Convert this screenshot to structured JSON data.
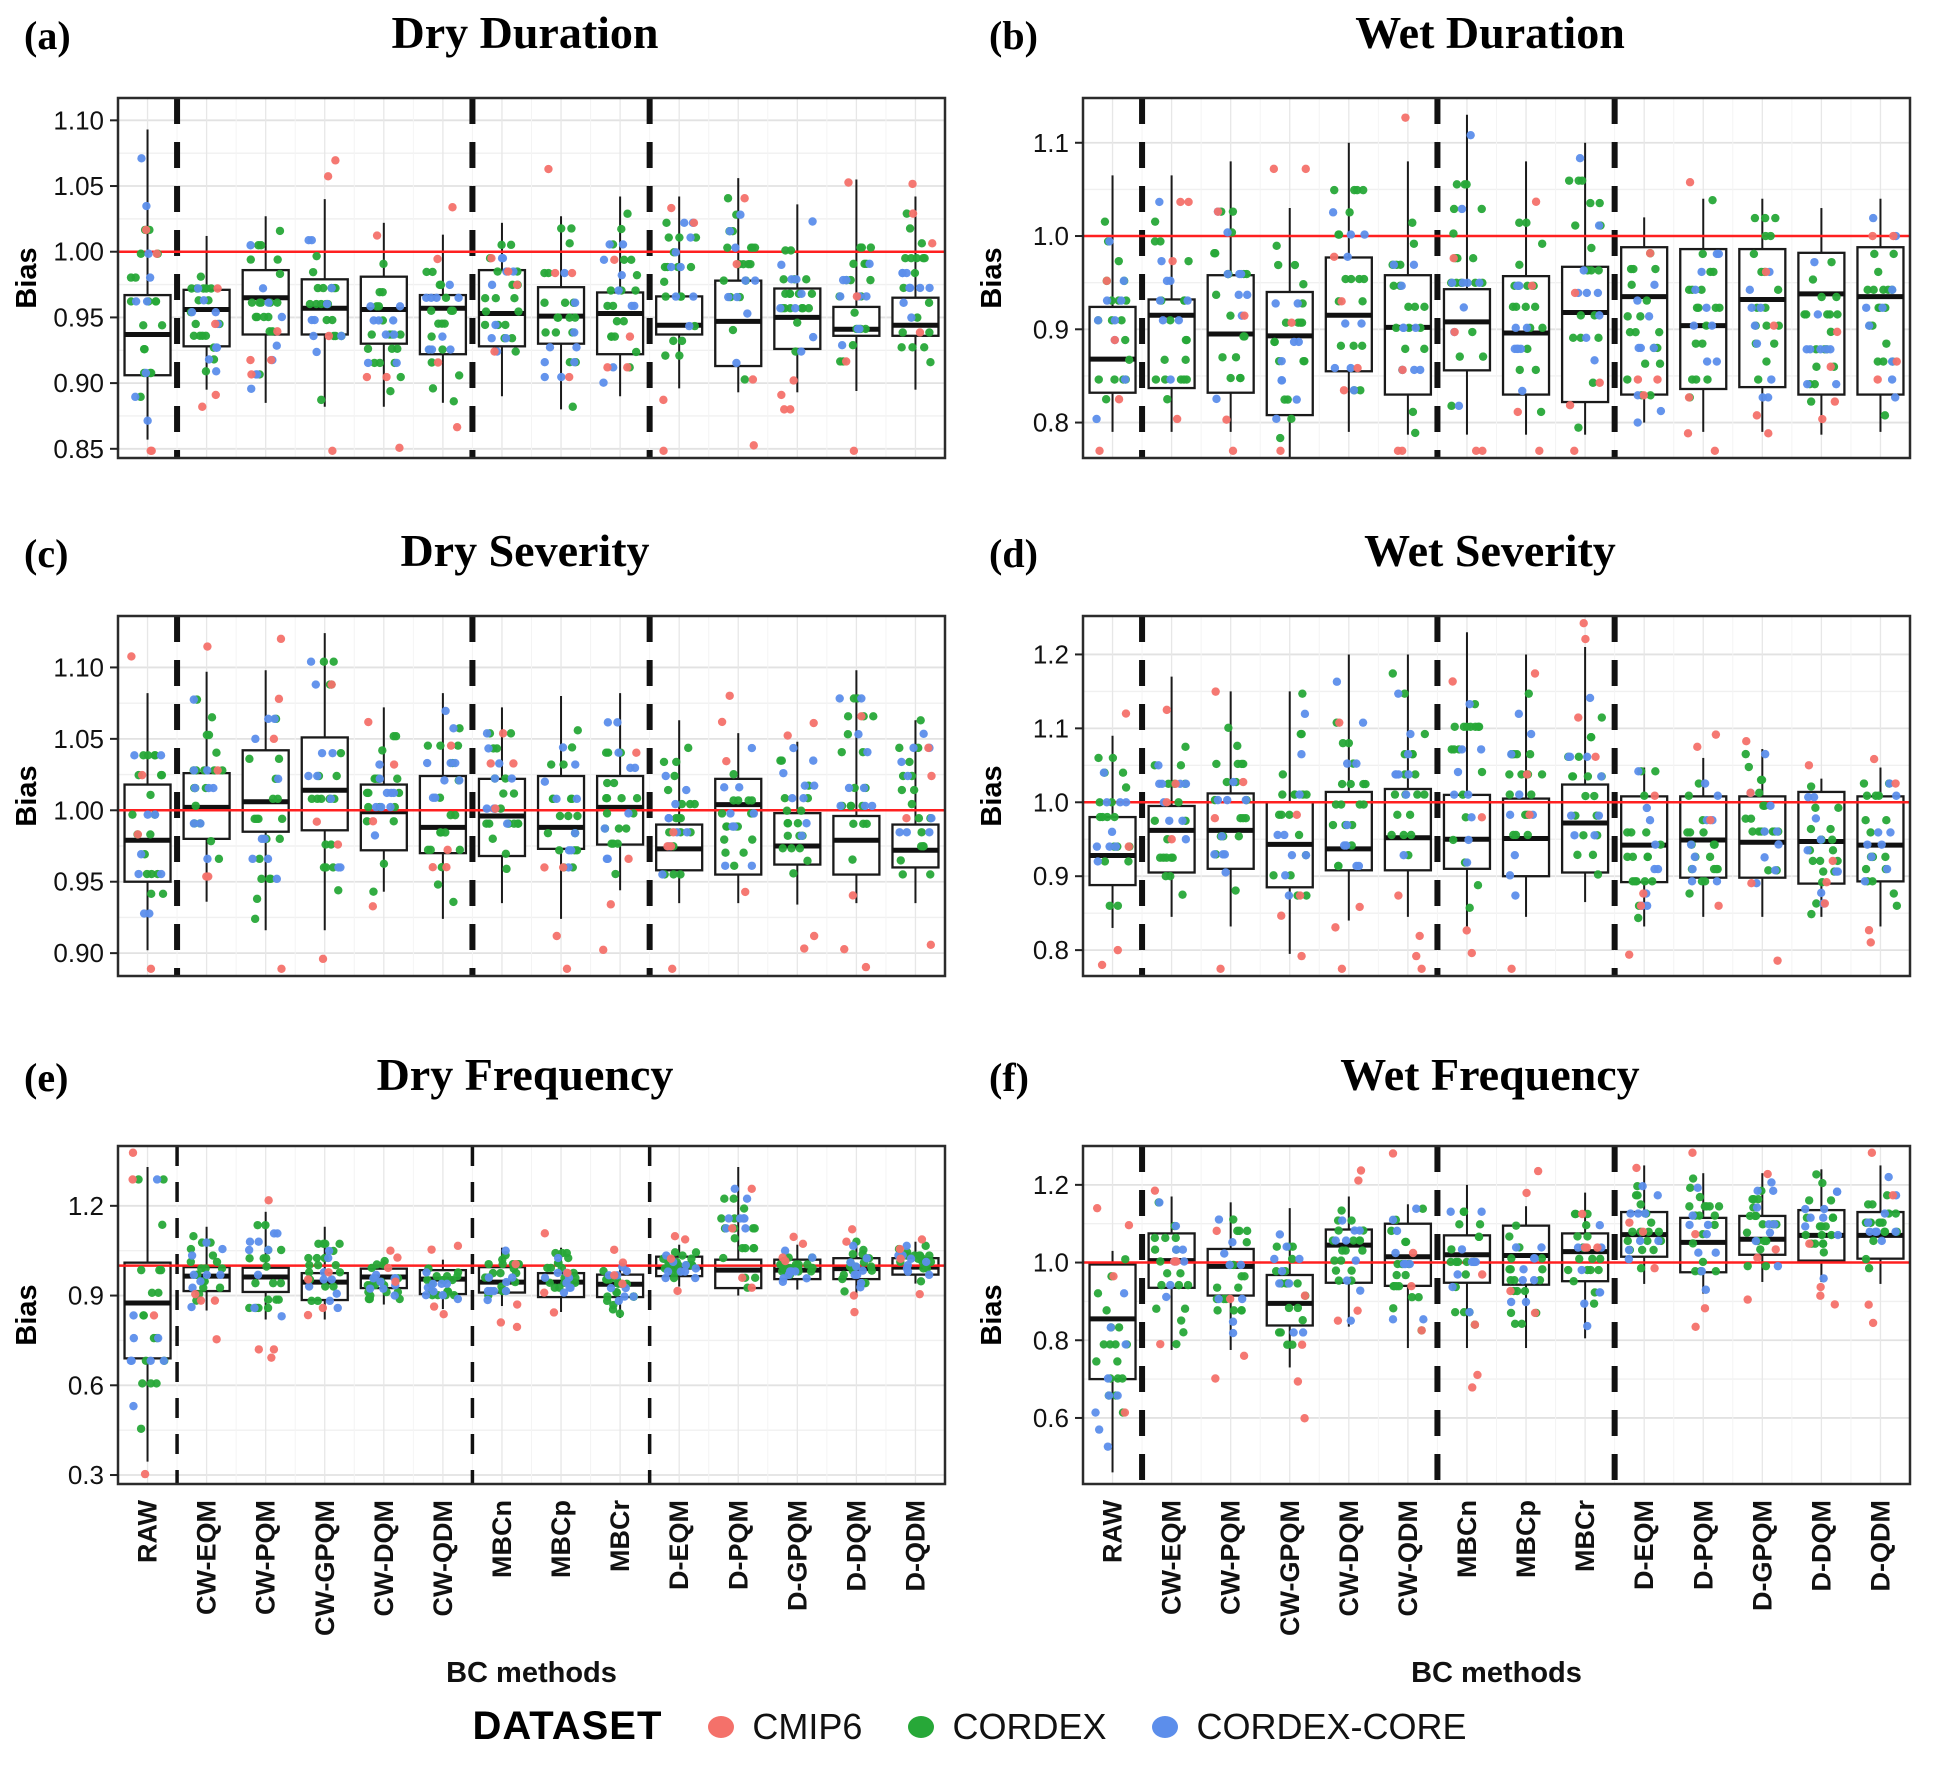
{
  "figure": {
    "background": "#ffffff"
  },
  "legend": {
    "title": "DATASET",
    "entries": [
      {
        "label": "CMIP6",
        "color": "#F4716A"
      },
      {
        "label": "CORDEX",
        "color": "#27A838"
      },
      {
        "label": "CORDEX-CORE",
        "color": "#5C8EEB"
      }
    ]
  },
  "chart_data": {
    "type": "boxplot",
    "xlabel": "BC methods",
    "ylabel": "Bias",
    "reference_line": 1.0,
    "reference_line_color": "#FF2020",
    "categories": [
      "RAW",
      "CW-EQM",
      "CW-PQM",
      "CW-GPQM",
      "CW-DQM",
      "CW-QDM",
      "MBCn",
      "MBCp",
      "MBCr",
      "D-EQM",
      "D-PQM",
      "D-GPQM",
      "D-DQM",
      "D-QDM"
    ],
    "group_separators_after": [
      "RAW",
      "CW-QDM",
      "MBCr"
    ],
    "datasets": [
      "CMIP6",
      "CORDEX",
      "CORDEX-CORE"
    ],
    "points_per_category": {
      "CMIP6": 4,
      "CORDEX": 18,
      "CORDEX-CORE": 9
    },
    "box_stats_order": [
      "whisker_low",
      "q1",
      "median",
      "q3",
      "whisker_high"
    ],
    "panels": [
      {
        "panel_label": "(a)",
        "title": "Dry Duration",
        "ylim": [
          0.843,
          1.117
        ],
        "yticks": [
          0.85,
          0.9,
          0.95,
          1.0,
          1.05,
          1.1
        ],
        "ytick_labels": [
          "0.85",
          "0.90",
          "0.95",
          "1.00",
          "1.05",
          "1.10"
        ],
        "boxes": [
          [
            0.857,
            0.906,
            0.937,
            0.967,
            1.093
          ],
          [
            0.895,
            0.928,
            0.956,
            0.971,
            1.012
          ],
          [
            0.885,
            0.937,
            0.965,
            0.986,
            1.027
          ],
          [
            0.882,
            0.937,
            0.957,
            0.979,
            1.04
          ],
          [
            0.882,
            0.93,
            0.956,
            0.981,
            1.022
          ],
          [
            0.885,
            0.922,
            0.957,
            0.967,
            1.013
          ],
          [
            0.89,
            0.928,
            0.953,
            0.986,
            1.022
          ],
          [
            0.88,
            0.93,
            0.951,
            0.973,
            1.027
          ],
          [
            0.89,
            0.922,
            0.953,
            0.969,
            1.042
          ],
          [
            0.896,
            0.937,
            0.944,
            0.966,
            1.042
          ],
          [
            0.893,
            0.913,
            0.947,
            0.978,
            1.056
          ],
          [
            0.893,
            0.926,
            0.95,
            0.972,
            1.036
          ],
          [
            0.894,
            0.936,
            0.941,
            0.958,
            1.055
          ],
          [
            0.895,
            0.936,
            0.944,
            0.965,
            1.042
          ]
        ]
      },
      {
        "panel_label": "(b)",
        "title": "Wet Duration",
        "ylim": [
          0.762,
          1.148
        ],
        "yticks": [
          0.8,
          0.9,
          1.0,
          1.1
        ],
        "ytick_labels": [
          "0.8",
          "0.9",
          "1.0",
          "1.1"
        ],
        "boxes": [
          [
            0.79,
            0.832,
            0.868,
            0.924,
            1.065
          ],
          [
            0.79,
            0.837,
            0.915,
            0.932,
            1.065
          ],
          [
            0.79,
            0.832,
            0.895,
            0.958,
            1.08
          ],
          [
            0.762,
            0.808,
            0.893,
            0.94,
            1.03
          ],
          [
            0.79,
            0.855,
            0.915,
            0.977,
            1.1
          ],
          [
            0.787,
            0.83,
            0.902,
            0.958,
            1.08
          ],
          [
            0.787,
            0.856,
            0.908,
            0.943,
            1.13
          ],
          [
            0.787,
            0.83,
            0.896,
            0.957,
            1.08
          ],
          [
            0.787,
            0.822,
            0.918,
            0.967,
            1.1
          ],
          [
            0.8,
            0.83,
            0.935,
            0.988,
            1.02
          ],
          [
            0.79,
            0.836,
            0.904,
            0.986,
            1.04
          ],
          [
            0.79,
            0.838,
            0.932,
            0.986,
            1.04
          ],
          [
            0.787,
            0.83,
            0.938,
            0.982,
            1.03
          ],
          [
            0.79,
            0.83,
            0.935,
            0.988,
            1.04
          ]
        ]
      },
      {
        "panel_label": "(c)",
        "title": "Dry Severity",
        "ylim": [
          0.884,
          1.136
        ],
        "yticks": [
          0.9,
          0.95,
          1.0,
          1.05,
          1.1
        ],
        "ytick_labels": [
          "0.90",
          "0.95",
          "1.00",
          "1.05",
          "1.10"
        ],
        "boxes": [
          [
            0.902,
            0.95,
            0.979,
            1.018,
            1.082
          ],
          [
            0.936,
            0.98,
            1.002,
            1.026,
            1.097
          ],
          [
            0.916,
            0.985,
            1.006,
            1.042,
            1.098
          ],
          [
            0.916,
            0.986,
            1.014,
            1.051,
            1.124
          ],
          [
            0.943,
            0.972,
            0.999,
            1.018,
            1.072
          ],
          [
            0.924,
            0.97,
            0.988,
            1.024,
            1.082
          ],
          [
            0.935,
            0.968,
            0.996,
            1.022,
            1.072
          ],
          [
            0.924,
            0.973,
            0.988,
            1.024,
            1.08
          ],
          [
            0.944,
            0.976,
            1.002,
            1.024,
            1.082
          ],
          [
            0.935,
            0.958,
            0.973,
            0.99,
            1.063
          ],
          [
            0.935,
            0.955,
            1.004,
            1.022,
            1.054
          ],
          [
            0.934,
            0.962,
            0.975,
            0.998,
            1.048
          ],
          [
            0.935,
            0.955,
            0.979,
            0.996,
            1.098
          ],
          [
            0.935,
            0.96,
            0.972,
            0.99,
            1.063
          ]
        ]
      },
      {
        "panel_label": "(d)",
        "title": "Wet Severity",
        "ylim": [
          0.765,
          1.252
        ],
        "yticks": [
          0.8,
          0.9,
          1.0,
          1.1,
          1.2
        ],
        "ytick_labels": [
          "0.8",
          "0.9",
          "1.0",
          "1.1",
          "1.2"
        ],
        "boxes": [
          [
            0.83,
            0.888,
            0.928,
            0.98,
            1.09
          ],
          [
            0.845,
            0.905,
            0.962,
            0.995,
            1.17
          ],
          [
            0.832,
            0.91,
            0.962,
            1.012,
            1.15
          ],
          [
            0.795,
            0.885,
            0.943,
            1.0,
            1.15
          ],
          [
            0.84,
            0.908,
            0.937,
            1.014,
            1.2
          ],
          [
            0.845,
            0.908,
            0.952,
            1.018,
            1.2
          ],
          [
            0.832,
            0.91,
            0.95,
            1.01,
            1.23
          ],
          [
            0.845,
            0.9,
            0.951,
            1.005,
            1.2
          ],
          [
            0.865,
            0.905,
            0.972,
            1.024,
            1.21
          ],
          [
            0.832,
            0.892,
            0.942,
            1.008,
            1.047
          ],
          [
            0.845,
            0.898,
            0.949,
            1.008,
            1.06
          ],
          [
            0.845,
            0.898,
            0.946,
            1.008,
            1.072
          ],
          [
            0.845,
            0.89,
            0.947,
            1.014,
            1.032
          ],
          [
            0.832,
            0.893,
            0.942,
            1.008,
            1.047
          ]
        ]
      },
      {
        "panel_label": "(e)",
        "title": "Dry Frequency",
        "ylim": [
          0.27,
          1.4
        ],
        "yticks": [
          0.3,
          0.6,
          0.9,
          1.2
        ],
        "ytick_labels": [
          "0.3",
          "0.6",
          "0.9",
          "1.2"
        ],
        "boxes": [
          [
            0.345,
            0.69,
            0.875,
            1.01,
            1.33
          ],
          [
            0.85,
            0.915,
            0.965,
            0.995,
            1.13
          ],
          [
            0.82,
            0.912,
            0.962,
            0.993,
            1.18
          ],
          [
            0.82,
            0.885,
            0.945,
            0.975,
            1.13
          ],
          [
            0.87,
            0.925,
            0.962,
            0.99,
            1.02
          ],
          [
            0.855,
            0.905,
            0.955,
            0.985,
            1.02
          ],
          [
            0.865,
            0.91,
            0.945,
            0.995,
            1.06
          ],
          [
            0.845,
            0.895,
            0.945,
            0.975,
            1.06
          ],
          [
            0.825,
            0.895,
            0.938,
            0.97,
            1.01
          ],
          [
            0.93,
            0.965,
            0.995,
            1.03,
            1.07
          ],
          [
            0.9,
            0.925,
            0.985,
            1.02,
            1.33
          ],
          [
            0.92,
            0.955,
            0.985,
            1.02,
            1.07
          ],
          [
            0.9,
            0.955,
            0.99,
            1.025,
            1.08
          ],
          [
            0.94,
            0.97,
            0.995,
            1.025,
            1.08
          ]
        ]
      },
      {
        "panel_label": "(f)",
        "title": "Wet Frequency",
        "ylim": [
          0.43,
          1.3
        ],
        "yticks": [
          0.6,
          0.8,
          1.0,
          1.2
        ],
        "ytick_labels": [
          "0.6",
          "0.8",
          "1.0",
          "1.2"
        ],
        "boxes": [
          [
            0.46,
            0.7,
            0.855,
            0.995,
            1.03
          ],
          [
            0.775,
            0.935,
            1.005,
            1.075,
            1.17
          ],
          [
            0.775,
            0.915,
            0.99,
            1.035,
            1.155
          ],
          [
            0.73,
            0.838,
            0.895,
            0.968,
            1.14
          ],
          [
            0.835,
            0.948,
            1.045,
            1.085,
            1.17
          ],
          [
            0.78,
            0.94,
            1.015,
            1.1,
            1.15
          ],
          [
            0.78,
            0.948,
            1.02,
            1.07,
            1.2
          ],
          [
            0.78,
            0.943,
            1.018,
            1.095,
            1.145
          ],
          [
            0.805,
            0.952,
            1.028,
            1.075,
            1.18
          ],
          [
            0.945,
            1.015,
            1.072,
            1.13,
            1.25
          ],
          [
            0.92,
            0.975,
            1.052,
            1.115,
            1.23
          ],
          [
            0.95,
            1.02,
            1.06,
            1.12,
            1.23
          ],
          [
            0.95,
            1.005,
            1.07,
            1.135,
            1.24
          ],
          [
            0.945,
            1.01,
            1.07,
            1.13,
            1.25
          ]
        ]
      }
    ]
  }
}
